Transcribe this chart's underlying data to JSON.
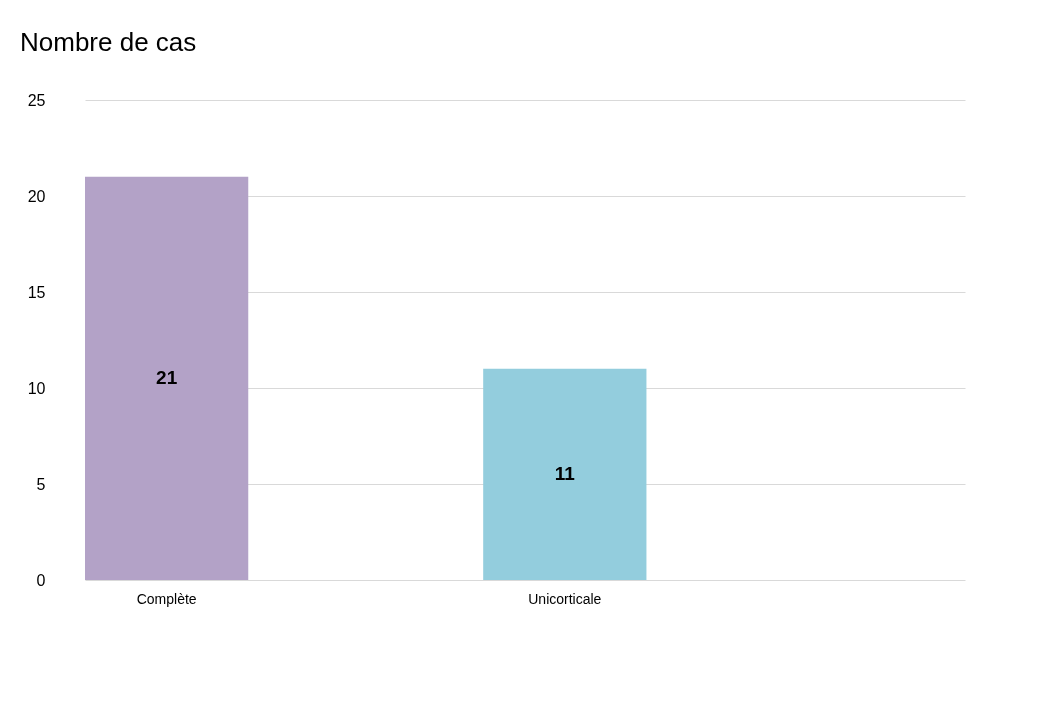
{
  "chart_data": {
    "type": "bar",
    "title": "Nombre de cas",
    "categories": [
      "Complète",
      "Unicorticale"
    ],
    "values": [
      21,
      11
    ],
    "colors": [
      "#b3a2c7",
      "#93cddd"
    ],
    "ylim": [
      0,
      25
    ],
    "yticks": [
      0,
      5,
      10,
      15,
      20,
      25
    ],
    "grid": "y",
    "data_labels": true
  }
}
